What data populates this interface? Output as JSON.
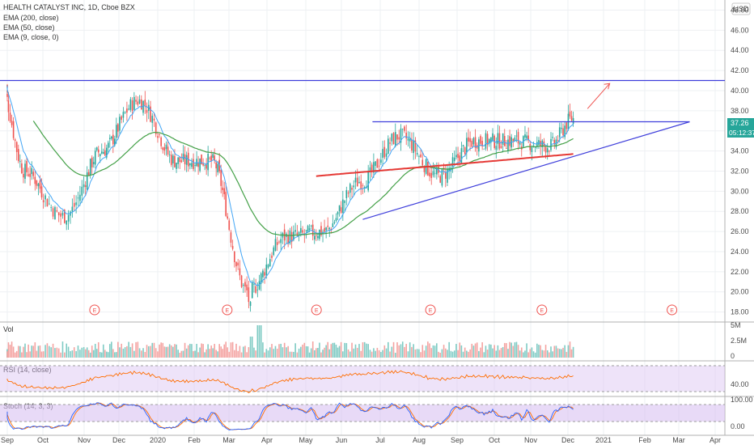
{
  "header": {
    "symbol_title": "HEALTH CATALYST INC, 1D, Cboe BZX",
    "legend": [
      "EMA (200, close)",
      "EMA (50, close)",
      "EMA (9, close, 0)"
    ],
    "currency": "USD"
  },
  "price_labels": {
    "last_price": "37.26",
    "countdown": "05:12:37"
  },
  "x_labels": [
    "Sep",
    "Oct",
    "Nov",
    "Dec",
    "2020",
    "Feb",
    "Mar",
    "Apr",
    "May",
    "Jun",
    "Jul",
    "Aug",
    "Sep",
    "Oct",
    "Nov",
    "Dec",
    "2021",
    "Feb",
    "Mar",
    "Apr"
  ],
  "earnings_marker": "E",
  "volume_pane": {
    "label": "Vol",
    "ticks": [
      "5M",
      "2.5M",
      "0"
    ]
  },
  "rsi_pane": {
    "label": "RSI (14, close)",
    "ticks": [
      "40.00"
    ]
  },
  "stoch_pane": {
    "label": "Stoch (14, 3, 3)",
    "ticks": [
      "100.00",
      "0.00"
    ]
  },
  "colors": {
    "up": "#26a69a",
    "down": "#ef5350",
    "ema200": "#e53935",
    "ema50": "#43a047",
    "ema9": "#42a5f5",
    "trendline": "#3f3fdb",
    "arrow": "#ef5350",
    "rsi": "#ff6d00",
    "stoch_k": "#2962ff",
    "stoch_d": "#ff6d00",
    "band": "#d9c2f2",
    "last_price_bg": "#26a69a"
  },
  "chart_data": {
    "type": "candlestick",
    "x_axis": "date",
    "date_range": [
      "2019-08",
      "2021-04"
    ],
    "ylim": [
      17,
      49
    ],
    "y_ticks": [
      18,
      20,
      22,
      24,
      26,
      28,
      30,
      32,
      34,
      36,
      38,
      40,
      42,
      44,
      46,
      48
    ],
    "close_points": [
      {
        "date": "2019-08",
        "close": 40.5
      },
      {
        "date": "2019-09",
        "close": 32
      },
      {
        "date": "2019-10",
        "close": 27.5
      },
      {
        "date": "2019-11",
        "close": 34
      },
      {
        "date": "2019-12",
        "close": 39
      },
      {
        "date": "2020-01",
        "close": 33
      },
      {
        "date": "2020-02",
        "close": 33
      },
      {
        "date": "2020-03",
        "close": 20
      },
      {
        "date": "2020-04",
        "close": 25.5
      },
      {
        "date": "2020-05",
        "close": 26
      },
      {
        "date": "2020-06",
        "close": 31
      },
      {
        "date": "2020-07",
        "close": 35.5
      },
      {
        "date": "2020-08",
        "close": 31.5
      },
      {
        "date": "2020-09",
        "close": 35
      },
      {
        "date": "2020-10",
        "close": 35
      },
      {
        "date": "2020-11",
        "close": 34.5
      },
      {
        "date": "2020-12",
        "close": 37.26
      }
    ],
    "highs_lows": {
      "low": 17.8,
      "low_date": "2020-03",
      "high": 41.2,
      "high_date": "2019-12"
    },
    "resistance": 41,
    "triangle": {
      "top": 36.9,
      "bottom_start": 27.2,
      "bottom_end": 36.9
    },
    "last_price": 37.26
  }
}
